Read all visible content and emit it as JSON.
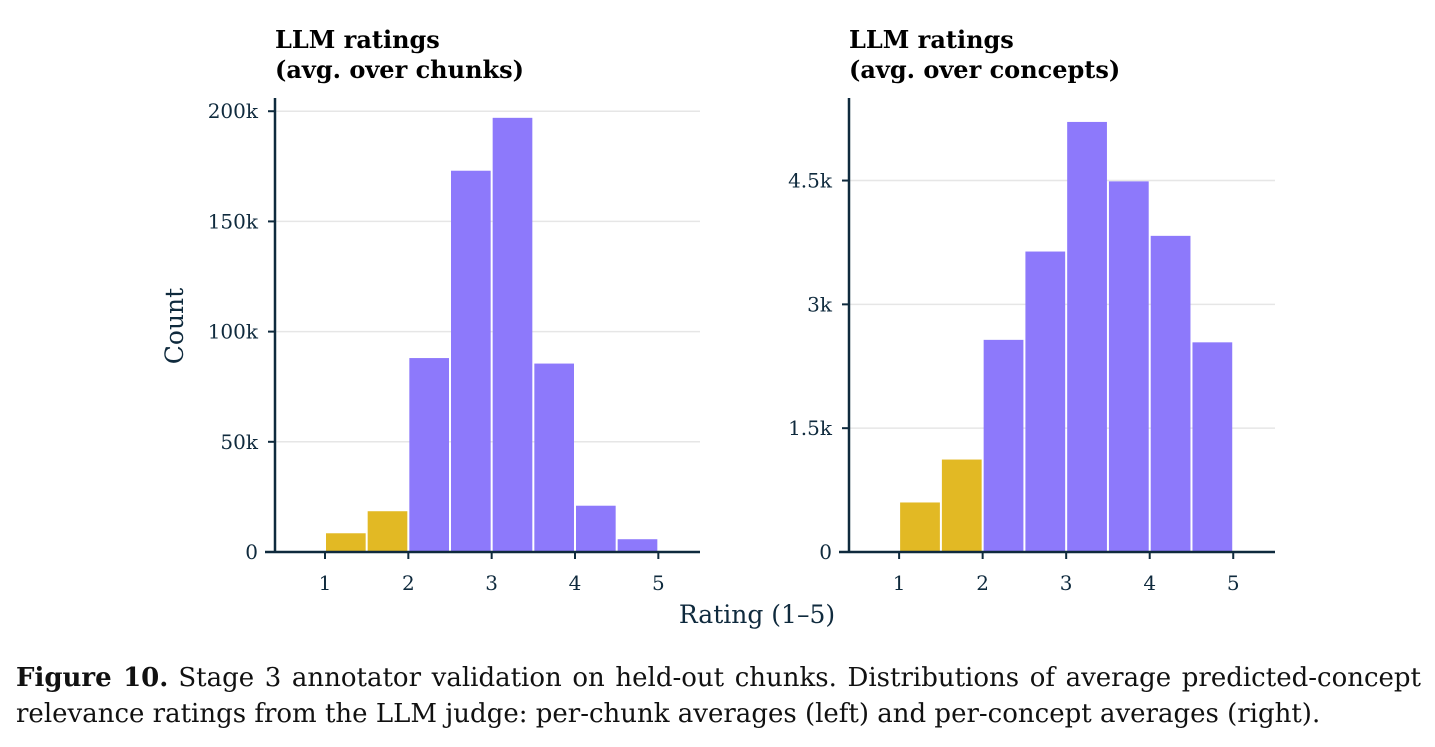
{
  "chart_data": [
    {
      "type": "bar",
      "title": "LLM ratings",
      "subtitle": "(avg. over chunks)",
      "ylabel": "Count",
      "xlabel": "Rating (1–5)",
      "bin_edges": [
        1.0,
        1.5,
        2.0,
        2.5,
        3.0,
        3.5,
        4.0,
        4.5,
        5.0
      ],
      "values": [
        8500,
        18500,
        88000,
        173000,
        197000,
        85500,
        21000,
        5800
      ],
      "bin_colors": [
        "#e2b924",
        "#e2b924",
        "#8d79fb",
        "#8d79fb",
        "#8d79fb",
        "#8d79fb",
        "#8d79fb",
        "#8d79fb"
      ],
      "xlim": [
        0.4,
        5.5
      ],
      "ylim": [
        0,
        206000
      ],
      "xticks": [
        1,
        2,
        3,
        4,
        5
      ],
      "xtick_labels": [
        "1",
        "2",
        "3",
        "4",
        "5"
      ],
      "yticks": [
        0,
        50000,
        100000,
        150000,
        200000
      ],
      "ytick_labels": [
        "0",
        "50k",
        "100k",
        "150k",
        "200k"
      ],
      "grid": true
    },
    {
      "type": "bar",
      "title": "LLM ratings",
      "subtitle": "(avg. over concepts)",
      "ylabel": "",
      "xlabel": "Rating (1–5)",
      "bin_edges": [
        1.0,
        1.5,
        2.0,
        2.5,
        3.0,
        3.5,
        4.0,
        4.5,
        5.0
      ],
      "values": [
        600,
        1120,
        2570,
        3640,
        5210,
        4490,
        3830,
        2540
      ],
      "bin_colors": [
        "#e2b924",
        "#e2b924",
        "#8d79fb",
        "#8d79fb",
        "#8d79fb",
        "#8d79fb",
        "#8d79fb",
        "#8d79fb"
      ],
      "xlim": [
        0.4,
        5.5
      ],
      "ylim": [
        0,
        5500
      ],
      "xticks": [
        1,
        2,
        3,
        4,
        5
      ],
      "xtick_labels": [
        "1",
        "2",
        "3",
        "4",
        "5"
      ],
      "yticks": [
        0,
        1500,
        3000,
        4500
      ],
      "ytick_labels": [
        "0",
        "1.5k",
        "3k",
        "4.5k"
      ],
      "grid": true
    }
  ],
  "shared_xlabel": "Rating (1–5)",
  "caption": {
    "label": "Figure 10.",
    "text": "Stage 3 annotator validation on held-out chunks.  Distributions of average predicted-concept relevance ratings from the LLM judge: per-chunk averages (left) and per-concept averages (right)."
  }
}
